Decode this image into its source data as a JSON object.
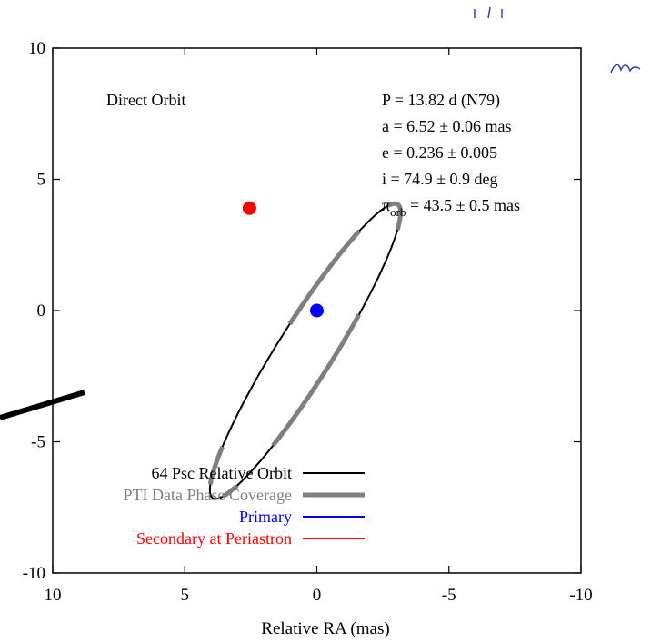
{
  "chart_data": {
    "type": "scatter",
    "xlabel": "Relative RA (mas)",
    "ylabel": "",
    "xlim": [
      10,
      -10
    ],
    "ylim": [
      -10,
      10
    ],
    "x_ticks": [
      10,
      5,
      0,
      -5,
      -10
    ],
    "y_ticks": [
      10,
      5,
      0,
      -5,
      -10
    ],
    "grid": false,
    "legend_placement": "bottom-left",
    "title": "Direct Orbit",
    "params": [
      {
        "lead": "P = 13.82 d (N79)"
      },
      {
        "lead": "a = 6.52 ± 0.06 mas"
      },
      {
        "lead": "e = 0.236 ± 0.005"
      },
      {
        "lead": "i = 74.9 ± 0.9 deg"
      },
      {
        "lead": "π",
        "sub": "orb",
        "rest": " = 43.5 ± 0.5 mas"
      }
    ],
    "orbit": {
      "ellipse_fit": {
        "center": [
          0.44,
          -1.55
        ],
        "semi_major": 6.6,
        "semi_minor": 1.05,
        "angle_deg": -58
      },
      "coverage_arcs_deg": [
        [
          95,
          140
        ],
        [
          165,
          210
        ],
        [
          250,
          305
        ],
        [
          330,
          345
        ],
        [
          20,
          45
        ]
      ]
    },
    "series": [
      {
        "name": "64 Psc Relative Orbit",
        "color": "#000000",
        "style": "line"
      },
      {
        "name": "PTI Data Phase Coverage",
        "color": "#7f7f7f",
        "style": "thick-line"
      },
      {
        "name": "Primary",
        "color": "#0000ff",
        "style": "point",
        "points": [
          [
            0.0,
            0.0
          ]
        ]
      },
      {
        "name": "Secondary at Periastron",
        "color": "#ff0000",
        "style": "point",
        "points": [
          [
            2.55,
            3.9
          ]
        ]
      }
    ]
  }
}
